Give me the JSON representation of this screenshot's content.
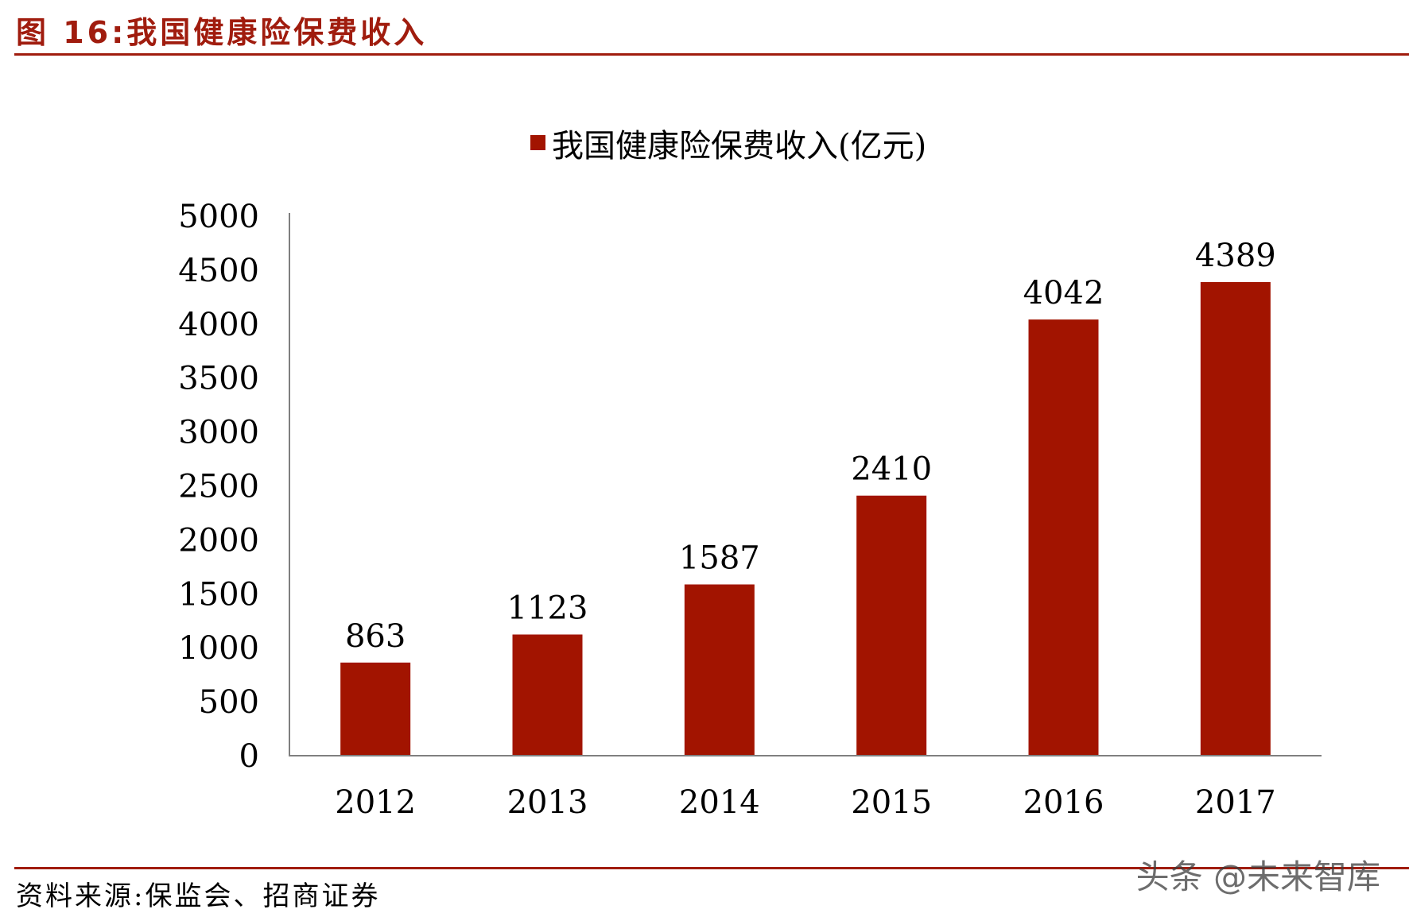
{
  "figure_title": "图 16:我国健康险保费收入",
  "source_note": "资料来源:保监会、招商证券",
  "watermark": "头条 @未来智库",
  "colors": {
    "accent": "#a01c0e",
    "bar": "#a21400",
    "axis": "#7f7f7f"
  },
  "chart_data": {
    "type": "bar",
    "legend": "我国健康险保费收入(亿元)",
    "legend_position": "top-center",
    "categories": [
      "2012",
      "2013",
      "2014",
      "2015",
      "2016",
      "2017"
    ],
    "series": [
      {
        "name": "我国健康险保费收入(亿元)",
        "values": [
          863,
          1123,
          1587,
          2410,
          4042,
          4389
        ]
      }
    ],
    "data_labels": [
      "863",
      "1123",
      "1587",
      "2410",
      "4042",
      "4389"
    ],
    "ylim": [
      0,
      5000
    ],
    "yticks": [
      0,
      500,
      1000,
      1500,
      2000,
      2500,
      3000,
      3500,
      4000,
      4500,
      5000
    ],
    "ytick_labels": [
      "0",
      "500",
      "1000",
      "1500",
      "2000",
      "2500",
      "3000",
      "3500",
      "4000",
      "4500",
      "5000"
    ],
    "grid": false,
    "xlabel": "",
    "ylabel": ""
  }
}
